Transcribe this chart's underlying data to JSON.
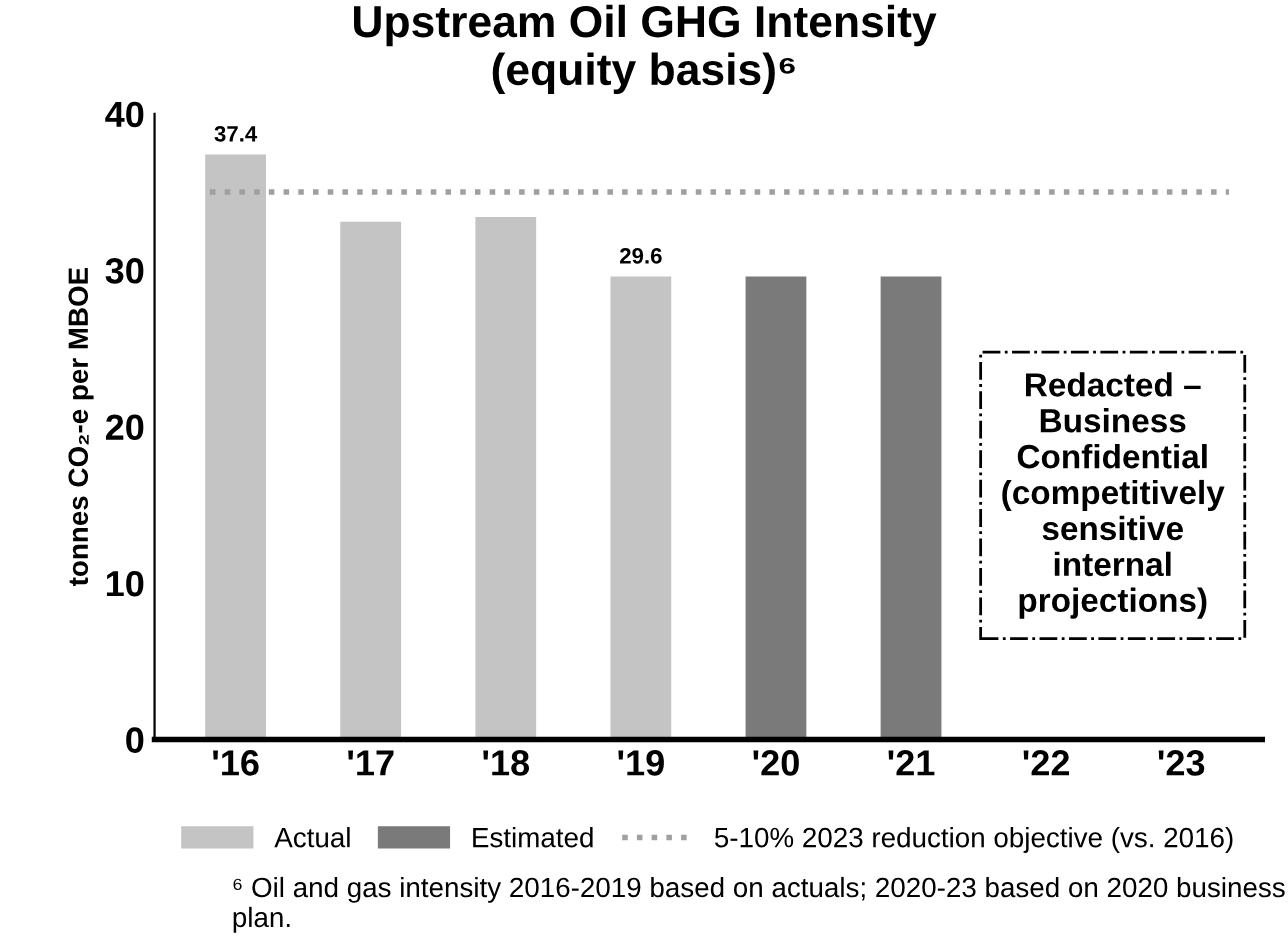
{
  "chart_data": {
    "type": "bar",
    "title": "Upstream Oil GHG Intensity\n(equity basis)⁶",
    "ylabel": "tonnes CO₂-e per MBOE",
    "categories": [
      "'16",
      "'17",
      "'18",
      "'19",
      "'20",
      "'21",
      "'22",
      "'23"
    ],
    "series": [
      {
        "name": "Actual",
        "color": "#c4c4c4",
        "values": [
          37.4,
          33.1,
          33.4,
          29.6,
          null,
          null,
          null,
          null
        ],
        "value_labels": [
          "37.4",
          null,
          null,
          "29.6",
          null,
          null,
          null,
          null
        ]
      },
      {
        "name": "Estimated",
        "color": "#7a7a7a",
        "values": [
          null,
          null,
          null,
          null,
          29.6,
          29.6,
          null,
          null
        ]
      }
    ],
    "ref_lines": [
      {
        "axis": "y",
        "value": 35.0,
        "label": "5-10% 2023 reduction objective (vs. 2016)",
        "color": "#a0a0a0",
        "line_style": "dotted"
      }
    ],
    "annotations": [
      "Redacted –\nBusiness\nConfidential\n(competitively\nsensitive\ninternal\nprojections)",
      "⁶ Oil and gas intensity 2016-2019 based on actuals; 2020-23 based on 2020 business plan."
    ],
    "ylim": [
      0,
      40
    ],
    "yticks": [
      0,
      10,
      20,
      30,
      40
    ],
    "grid": false,
    "legend": "bottom"
  }
}
